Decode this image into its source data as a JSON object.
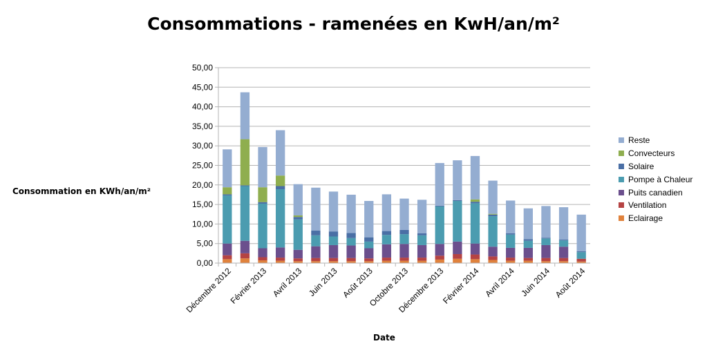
{
  "chart_data": {
    "type": "bar",
    "stacked": true,
    "title": "Consommations - ramenées en KwH/an/m²",
    "xlabel": "Date",
    "ylabel": "Consommation en KWh/an/m²",
    "ylim": [
      0,
      50
    ],
    "yticks": [
      "0,00",
      "5,00",
      "10,00",
      "15,00",
      "20,00",
      "25,00",
      "30,00",
      "35,00",
      "40,00",
      "45,00",
      "50,00"
    ],
    "grid": true,
    "legend_position": "right",
    "categories": [
      "Décembre 2012",
      "Janvier 2013",
      "Février 2013",
      "Mars 2013",
      "Avril 2013",
      "Mai 2013",
      "Juin 2013",
      "Juillet 2013",
      "Août 2013",
      "Septembre 2013",
      "Octobre 2013",
      "Novembre 2013",
      "Décembre 2013",
      "Janvier 2014",
      "Février 2014",
      "Mars 2014",
      "Avril 2014",
      "Mai 2014",
      "Juin 2014",
      "Juillet 2014",
      "Août 2014"
    ],
    "x_tick_labels": [
      "Décembre 2012",
      "",
      "Février 2013",
      "",
      "Avril 2013",
      "",
      "Juin 2013",
      "",
      "Août 2013",
      "",
      "Octobre 2013",
      "",
      "Décembre 2013",
      "",
      "Février 2014",
      "",
      "Avril 2014",
      "",
      "Juin 2014",
      "",
      "Août 2014"
    ],
    "series": [
      {
        "name": "Eclairage",
        "color": "#e0823c",
        "values": [
          1.0,
          1.2,
          0.7,
          0.6,
          0.5,
          0.5,
          0.5,
          0.5,
          0.5,
          0.6,
          0.6,
          0.6,
          0.9,
          1.1,
          1.0,
          0.8,
          0.6,
          0.6,
          0.5,
          0.5,
          0.4
        ]
      },
      {
        "name": "Ventilation",
        "color": "#b54343",
        "values": [
          1.0,
          1.3,
          0.8,
          0.8,
          0.7,
          0.8,
          0.8,
          0.8,
          0.7,
          0.8,
          0.8,
          0.8,
          1.0,
          1.2,
          1.2,
          0.9,
          0.8,
          0.7,
          0.8,
          0.8,
          0.7
        ]
      },
      {
        "name": "Puits canadien",
        "color": "#6b4f8d",
        "values": [
          3.0,
          3.2,
          2.3,
          2.6,
          2.2,
          3.0,
          3.3,
          3.2,
          2.6,
          3.4,
          3.5,
          3.2,
          3.0,
          3.2,
          2.8,
          2.5,
          2.5,
          2.6,
          3.3,
          2.9,
          0.0
        ]
      },
      {
        "name": "Pompe à Chaleur",
        "color": "#4b9cb0",
        "values": [
          12.3,
          14.0,
          11.4,
          14.9,
          7.8,
          2.8,
          2.2,
          1.9,
          1.7,
          2.4,
          2.5,
          2.5,
          9.6,
          10.4,
          10.3,
          7.8,
          3.4,
          1.8,
          1.7,
          1.6,
          1.7
        ]
      },
      {
        "name": "Solaire",
        "color": "#4a6fa5",
        "values": [
          0.3,
          0.2,
          0.4,
          0.8,
          0.6,
          1.2,
          1.3,
          1.3,
          1.1,
          1.0,
          1.1,
          0.5,
          0.2,
          0.2,
          0.4,
          0.4,
          0.3,
          0.4,
          0.2,
          0.2,
          0.2
        ]
      },
      {
        "name": "Convecteurs",
        "color": "#8fae4f",
        "values": [
          1.8,
          11.8,
          3.8,
          2.7,
          0.4,
          0.0,
          0.0,
          0.0,
          0.0,
          0.0,
          0.0,
          0.0,
          0.0,
          0.0,
          0.6,
          0.2,
          0.0,
          0.0,
          0.0,
          0.0,
          0.0
        ]
      },
      {
        "name": "Reste",
        "color": "#94add1",
        "values": [
          9.7,
          12.0,
          10.3,
          11.6,
          8.0,
          11.0,
          10.2,
          9.8,
          9.3,
          9.4,
          8.0,
          8.6,
          10.9,
          10.2,
          11.1,
          8.5,
          8.4,
          7.9,
          8.1,
          8.3,
          9.4
        ]
      }
    ]
  }
}
